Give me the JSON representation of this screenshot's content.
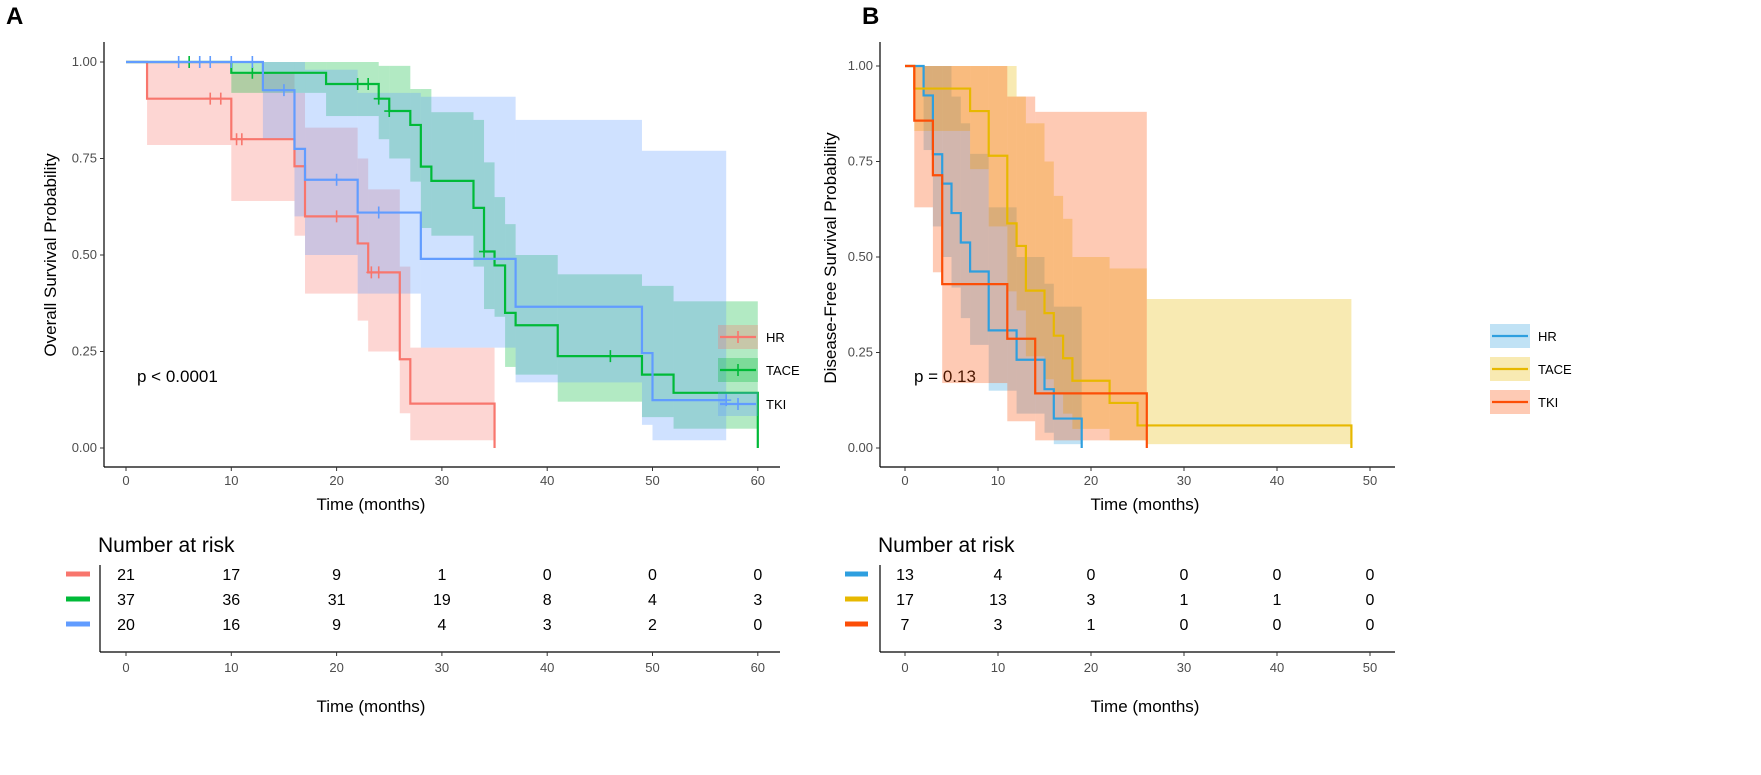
{
  "chart_data": [
    {
      "panel_label": "A",
      "type": "line",
      "subtype": "kaplan-meier step with confidence bands",
      "xlabel": "Time (months)",
      "ylabel": "Overall Survival Probability",
      "xlim": [
        0,
        60
      ],
      "ylim": [
        0,
        1
      ],
      "xticks": [
        "0",
        "10",
        "20",
        "30",
        "40",
        "50",
        "60"
      ],
      "yticks": [
        "0.00",
        "0.25",
        "0.50",
        "0.75",
        "1.00"
      ],
      "annotation": "p < 0.0001",
      "legend_position": "right",
      "grid": false,
      "series": [
        {
          "name": "HR",
          "color": "#F8766D",
          "end": 35,
          "steps": [
            [
              2,
              0.905
            ],
            [
              10,
              0.8
            ],
            [
              16,
              0.73
            ],
            [
              17,
              0.6
            ],
            [
              22,
              0.53
            ],
            [
              23,
              0.455
            ],
            [
              26,
              0.23
            ],
            [
              27,
              0.115
            ],
            [
              35,
              0
            ]
          ],
          "censored": [
            [
              8,
              0.905
            ],
            [
              9,
              0.905
            ],
            [
              10.5,
              0.8
            ],
            [
              11,
              0.8
            ],
            [
              20,
              0.6
            ],
            [
              23.3,
              0.455
            ],
            [
              24,
              0.455
            ]
          ],
          "band": [
            [
              0,
              1,
              1
            ],
            [
              2,
              0.785,
              1
            ],
            [
              10,
              0.64,
              0.97
            ],
            [
              16,
              0.55,
              0.92
            ],
            [
              17,
              0.4,
              0.83
            ],
            [
              22,
              0.33,
              0.75
            ],
            [
              23,
              0.25,
              0.67
            ],
            [
              26,
              0.09,
              0.47
            ],
            [
              27,
              0.02,
              0.26
            ]
          ]
        },
        {
          "name": "TACE",
          "color": "#00BA38",
          "end": 60,
          "steps": [
            [
              10,
              0.972
            ],
            [
              19,
              0.943
            ],
            [
              24,
              0.905
            ],
            [
              25,
              0.873
            ],
            [
              27,
              0.837
            ],
            [
              28,
              0.729
            ],
            [
              29,
              0.692
            ],
            [
              33,
              0.622
            ],
            [
              34,
              0.509
            ],
            [
              35,
              0.473
            ],
            [
              36,
              0.35
            ],
            [
              37,
              0.318
            ],
            [
              41,
              0.238
            ],
            [
              49,
              0.19
            ],
            [
              52,
              0.143
            ],
            [
              60,
              0
            ]
          ],
          "censored": [
            [
              6,
              1
            ],
            [
              12,
              0.972
            ],
            [
              13,
              0.972
            ],
            [
              22,
              0.943
            ],
            [
              23,
              0.943
            ],
            [
              24,
              0.905
            ],
            [
              25,
              0.873
            ],
            [
              34,
              0.509
            ],
            [
              46,
              0.238
            ]
          ],
          "band": [
            [
              0,
              1,
              1
            ],
            [
              10,
              0.92,
              1
            ],
            [
              19,
              0.86,
              1
            ],
            [
              24,
              0.8,
              0.99
            ],
            [
              25,
              0.75,
              0.99
            ],
            [
              27,
              0.69,
              0.93
            ],
            [
              28,
              0.57,
              0.93
            ],
            [
              29,
              0.55,
              0.87
            ],
            [
              33,
              0.47,
              0.85
            ],
            [
              34,
              0.36,
              0.74
            ],
            [
              35,
              0.34,
              0.65
            ],
            [
              36,
              0.21,
              0.58
            ],
            [
              37,
              0.19,
              0.5
            ],
            [
              41,
              0.12,
              0.45
            ],
            [
              49,
              0.08,
              0.42
            ],
            [
              52,
              0.05,
              0.38
            ]
          ]
        },
        {
          "name": "TKI",
          "color": "#619CFF",
          "end": 57,
          "steps": [
            [
              13,
              0.927
            ],
            [
              16,
              0.775
            ],
            [
              17,
              0.695
            ],
            [
              22,
              0.61
            ],
            [
              28,
              0.49
            ],
            [
              37,
              0.366
            ],
            [
              49,
              0.246
            ],
            [
              50,
              0.124
            ]
          ],
          "censored": [
            [
              5,
              1
            ],
            [
              7,
              1
            ],
            [
              8,
              1
            ],
            [
              10,
              1
            ],
            [
              12,
              1
            ],
            [
              15,
              0.927
            ],
            [
              20,
              0.695
            ],
            [
              24,
              0.61
            ],
            [
              57,
              0.124
            ]
          ],
          "band": [
            [
              0,
              1,
              1
            ],
            [
              13,
              0.8,
              1
            ],
            [
              16,
              0.6,
              1
            ],
            [
              17,
              0.5,
              0.98
            ],
            [
              22,
              0.4,
              0.92
            ],
            [
              28,
              0.26,
              0.91
            ],
            [
              37,
              0.17,
              0.85
            ],
            [
              49,
              0.06,
              0.77
            ],
            [
              50,
              0.02,
              0.77
            ]
          ]
        }
      ],
      "risk_table": {
        "title": "Number at risk",
        "xlabel": "Time (months)",
        "times": [
          "0",
          "10",
          "20",
          "30",
          "40",
          "50",
          "60"
        ],
        "rows": [
          {
            "name": "HR",
            "values": [
              "21",
              "17",
              "9",
              "1",
              "0",
              "0",
              "0"
            ]
          },
          {
            "name": "TACE",
            "values": [
              "37",
              "36",
              "31",
              "19",
              "8",
              "4",
              "3"
            ]
          },
          {
            "name": "TKI",
            "values": [
              "20",
              "16",
              "9",
              "4",
              "3",
              "2",
              "0"
            ]
          }
        ]
      }
    },
    {
      "panel_label": "B",
      "type": "line",
      "subtype": "kaplan-meier step with confidence bands",
      "xlabel": "Time (months)",
      "ylabel": "Disease-Free Survival Probability",
      "xlim": [
        0,
        50
      ],
      "ylim": [
        0,
        1
      ],
      "xticks": [
        "0",
        "10",
        "20",
        "30",
        "40",
        "50"
      ],
      "yticks": [
        "0.00",
        "0.25",
        "0.50",
        "0.75",
        "1.00"
      ],
      "annotation": "p = 0.13",
      "legend_position": "right",
      "grid": false,
      "series": [
        {
          "name": "HR",
          "color": "#2E9FDF",
          "end": 19,
          "steps": [
            [
              2,
              0.923
            ],
            [
              3,
              0.769
            ],
            [
              4,
              0.692
            ],
            [
              5,
              0.615
            ],
            [
              6,
              0.538
            ],
            [
              7,
              0.462
            ],
            [
              9,
              0.308
            ],
            [
              12,
              0.231
            ],
            [
              15,
              0.154
            ],
            [
              16,
              0.077
            ],
            [
              19,
              0
            ]
          ],
          "censored": [],
          "band": [
            [
              0,
              1,
              1
            ],
            [
              2,
              0.78,
              1
            ],
            [
              3,
              0.58,
              1
            ],
            [
              4,
              0.5,
              1
            ],
            [
              5,
              0.42,
              0.92
            ],
            [
              6,
              0.34,
              0.85
            ],
            [
              7,
              0.27,
              0.77
            ],
            [
              9,
              0.15,
              0.63
            ],
            [
              12,
              0.09,
              0.5
            ],
            [
              15,
              0.04,
              0.43
            ],
            [
              16,
              0.01,
              0.37
            ]
          ]
        },
        {
          "name": "TACE",
          "color": "#E7B800",
          "end": 48,
          "steps": [
            [
              1,
              0.941
            ],
            [
              7,
              0.882
            ],
            [
              9,
              0.765
            ],
            [
              11,
              0.588
            ],
            [
              12,
              0.529
            ],
            [
              13,
              0.412
            ],
            [
              15,
              0.353
            ],
            [
              16,
              0.294
            ],
            [
              17,
              0.235
            ],
            [
              18,
              0.176
            ],
            [
              22,
              0.118
            ],
            [
              25,
              0.059
            ],
            [
              48,
              0
            ]
          ],
          "censored": [],
          "band": [
            [
              0,
              1,
              1
            ],
            [
              1,
              0.83,
              1
            ],
            [
              7,
              0.73,
              1
            ],
            [
              9,
              0.58,
              1
            ],
            [
              11,
              0.41,
              1
            ],
            [
              12,
              0.36,
              0.92
            ],
            [
              13,
              0.24,
              0.85
            ],
            [
              15,
              0.18,
              0.75
            ],
            [
              16,
              0.14,
              0.66
            ],
            [
              17,
              0.09,
              0.6
            ],
            [
              18,
              0.05,
              0.5
            ],
            [
              22,
              0.02,
              0.47
            ],
            [
              26,
              0.01,
              0.39
            ]
          ]
        },
        {
          "name": "TKI",
          "color": "#FC4E07",
          "end": 26,
          "steps": [
            [
              1,
              0.857
            ],
            [
              3,
              0.714
            ],
            [
              4,
              0.429
            ],
            [
              11,
              0.286
            ],
            [
              14,
              0.143
            ],
            [
              26,
              0
            ]
          ],
          "censored": [],
          "band": [
            [
              0,
              1,
              1
            ],
            [
              1,
              0.63,
              1
            ],
            [
              3,
              0.46,
              1
            ],
            [
              4,
              0.17,
              1
            ],
            [
              11,
              0.07,
              0.92
            ],
            [
              14,
              0.02,
              0.88
            ]
          ]
        }
      ],
      "risk_table": {
        "title": "Number at risk",
        "xlabel": "Time (months)",
        "times": [
          "0",
          "10",
          "20",
          "30",
          "40",
          "50"
        ],
        "rows": [
          {
            "name": "HR",
            "values": [
              "13",
              "4",
              "0",
              "0",
              "0",
              "0"
            ]
          },
          {
            "name": "TACE",
            "values": [
              "17",
              "13",
              "3",
              "1",
              "1",
              "0"
            ]
          },
          {
            "name": "TKI",
            "values": [
              "7",
              "3",
              "1",
              "0",
              "0",
              "0"
            ]
          }
        ]
      }
    }
  ]
}
